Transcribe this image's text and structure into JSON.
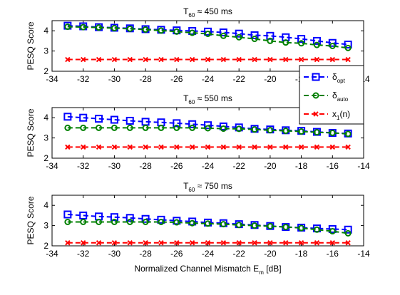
{
  "chart_data": [
    {
      "type": "line",
      "title": {
        "main": "T",
        "sub": "60",
        "rest": " ≈ 450 ms"
      },
      "ylabel": "PESQ Score",
      "xlabel": "",
      "xlim": [
        -34,
        -14
      ],
      "ylim": [
        2,
        4.5
      ],
      "xticks": [
        -34,
        -32,
        -30,
        -28,
        -26,
        -24,
        -22,
        -20,
        -18,
        -16,
        -14
      ],
      "yticks": [
        2,
        3,
        4
      ],
      "x": [
        -33,
        -32,
        -31,
        -30,
        -29,
        -28,
        -27,
        -26,
        -25,
        -24,
        -23,
        -22,
        -21,
        -20,
        -19,
        -18,
        -17,
        -16,
        -15
      ],
      "series": [
        {
          "key": "opt",
          "color": "#0000ff",
          "marker": "square",
          "values": [
            4.25,
            4.22,
            4.18,
            4.15,
            4.12,
            4.08,
            4.05,
            4.02,
            3.99,
            3.96,
            3.92,
            3.86,
            3.78,
            3.75,
            3.68,
            3.6,
            3.5,
            3.4,
            3.32
          ]
        },
        {
          "key": "auto",
          "color": "#008000",
          "marker": "circle",
          "values": [
            4.2,
            4.18,
            4.16,
            4.13,
            4.1,
            4.06,
            4.01,
            3.96,
            3.9,
            3.85,
            3.75,
            3.68,
            3.6,
            3.5,
            3.42,
            3.38,
            3.3,
            3.25,
            3.15
          ]
        },
        {
          "key": "x1",
          "color": "#ff0000",
          "marker": "x",
          "values": [
            2.58,
            2.58,
            2.58,
            2.58,
            2.58,
            2.58,
            2.58,
            2.58,
            2.58,
            2.58,
            2.58,
            2.58,
            2.58,
            2.58,
            2.58,
            2.58,
            2.58,
            2.58,
            2.58
          ]
        }
      ]
    },
    {
      "type": "line",
      "title": {
        "main": "T",
        "sub": "60",
        "rest": " ≈ 550 ms"
      },
      "ylabel": "PESQ Score",
      "xlabel": "",
      "xlim": [
        -34,
        -14
      ],
      "ylim": [
        2,
        4.5
      ],
      "xticks": [
        -34,
        -32,
        -30,
        -28,
        -26,
        -24,
        -22,
        -20,
        -18,
        -16,
        -14
      ],
      "yticks": [
        2,
        3,
        4
      ],
      "x": [
        -33,
        -32,
        -31,
        -30,
        -29,
        -28,
        -27,
        -26,
        -25,
        -24,
        -23,
        -22,
        -21,
        -20,
        -19,
        -18,
        -17,
        -16,
        -15
      ],
      "series": [
        {
          "key": "opt",
          "color": "#0000ff",
          "marker": "square",
          "values": [
            4.05,
            4.0,
            3.95,
            3.9,
            3.85,
            3.8,
            3.77,
            3.73,
            3.68,
            3.63,
            3.57,
            3.52,
            3.45,
            3.42,
            3.38,
            3.35,
            3.3,
            3.25,
            3.22
          ]
        },
        {
          "key": "auto",
          "color": "#008000",
          "marker": "circle",
          "values": [
            3.5,
            3.5,
            3.5,
            3.5,
            3.5,
            3.5,
            3.5,
            3.5,
            3.5,
            3.48,
            3.46,
            3.45,
            3.42,
            3.38,
            3.35,
            3.32,
            3.28,
            3.25,
            3.2
          ]
        },
        {
          "key": "x1",
          "color": "#ff0000",
          "marker": "x",
          "values": [
            2.55,
            2.55,
            2.55,
            2.55,
            2.55,
            2.55,
            2.55,
            2.55,
            2.55,
            2.55,
            2.55,
            2.55,
            2.55,
            2.55,
            2.55,
            2.55,
            2.55,
            2.55,
            2.55
          ]
        }
      ]
    },
    {
      "type": "line",
      "title": {
        "main": "T",
        "sub": "60",
        "rest": " ≈ 750 ms"
      },
      "ylabel": "PESQ Score",
      "xlabel": "Normalized Channel Mismatch E",
      "xlabel_sub": "m",
      "xlabel_rest": " [dB]",
      "xlim": [
        -34,
        -14
      ],
      "ylim": [
        2,
        4.5
      ],
      "xticks": [
        -34,
        -32,
        -30,
        -28,
        -26,
        -24,
        -22,
        -20,
        -18,
        -16,
        -14
      ],
      "yticks": [
        2,
        3,
        4
      ],
      "x": [
        -33,
        -32,
        -31,
        -30,
        -29,
        -28,
        -27,
        -26,
        -25,
        -24,
        -23,
        -22,
        -21,
        -20,
        -19,
        -18,
        -17,
        -16,
        -15
      ],
      "series": [
        {
          "key": "opt",
          "color": "#0000ff",
          "marker": "square",
          "values": [
            3.55,
            3.5,
            3.45,
            3.42,
            3.38,
            3.33,
            3.29,
            3.24,
            3.2,
            3.15,
            3.12,
            3.07,
            3.03,
            2.98,
            2.93,
            2.9,
            2.86,
            2.83,
            2.8
          ]
        },
        {
          "key": "auto",
          "color": "#008000",
          "marker": "circle",
          "values": [
            3.18,
            3.18,
            3.18,
            3.18,
            3.18,
            3.18,
            3.18,
            3.16,
            3.12,
            3.1,
            3.07,
            3.03,
            3.0,
            2.97,
            2.93,
            2.88,
            2.8,
            2.72,
            2.62
          ]
        },
        {
          "key": "x1",
          "color": "#ff0000",
          "marker": "x",
          "values": [
            2.15,
            2.15,
            2.15,
            2.15,
            2.15,
            2.15,
            2.15,
            2.15,
            2.15,
            2.15,
            2.15,
            2.15,
            2.15,
            2.15,
            2.15,
            2.15,
            2.15,
            2.15,
            2.15
          ]
        }
      ]
    }
  ],
  "legend": {
    "placement": "right-between-top-and-middle",
    "entries": [
      {
        "key": "opt",
        "symbol": "δ",
        "sub": "opt",
        "rest": ""
      },
      {
        "key": "auto",
        "symbol": "δ",
        "sub": "auto",
        "rest": ""
      },
      {
        "key": "x1",
        "symbol": "x",
        "sub": "1",
        "rest": "(n)"
      }
    ]
  }
}
